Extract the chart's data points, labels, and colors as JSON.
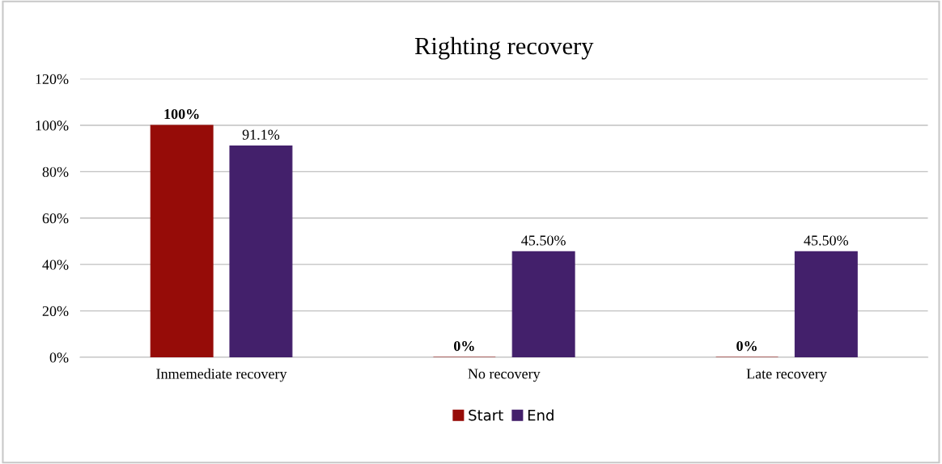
{
  "chart_data": {
    "type": "bar",
    "title": "Righting recovery",
    "categories": [
      "Inmemediate recovery",
      "No recovery",
      "Late recovery"
    ],
    "series": [
      {
        "name": "Start",
        "color": "#960c08",
        "values": [
          100,
          0,
          0
        ],
        "value_labels": [
          "100%",
          "0%",
          "0%"
        ]
      },
      {
        "name": "End",
        "color": "#43206b",
        "values": [
          91.1,
          45.5,
          45.5
        ],
        "value_labels": [
          "91.1%",
          "45.50%",
          "45.50%"
        ]
      }
    ],
    "ylim": [
      0,
      120
    ],
    "yticks": [
      {
        "value": 0,
        "label": "0%"
      },
      {
        "value": 20,
        "label": "20%"
      },
      {
        "value": 40,
        "label": "40%"
      },
      {
        "value": 60,
        "label": "60%"
      },
      {
        "value": 80,
        "label": "80%"
      },
      {
        "value": 100,
        "label": "100%"
      },
      {
        "value": 120,
        "label": "120%"
      }
    ],
    "grid": "y",
    "legend": "bottom"
  }
}
